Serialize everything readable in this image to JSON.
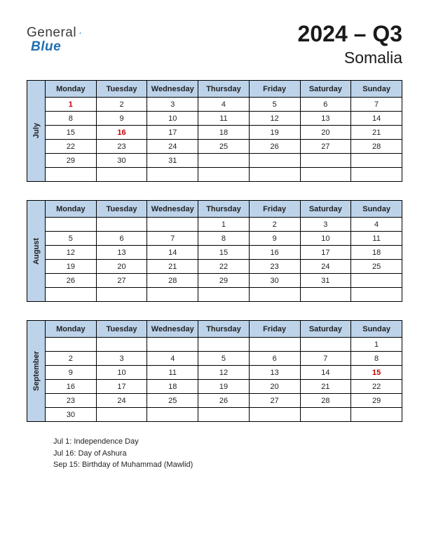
{
  "logo": {
    "general": "General",
    "blue": "Blue"
  },
  "header": {
    "title": "2024 – Q3",
    "country": "Somalia"
  },
  "weekdays": [
    "Monday",
    "Tuesday",
    "Wednesday",
    "Thursday",
    "Friday",
    "Saturday",
    "Sunday"
  ],
  "months": [
    {
      "name": "July",
      "rows": [
        [
          {
            "d": "1",
            "h": true
          },
          {
            "d": "2"
          },
          {
            "d": "3"
          },
          {
            "d": "4"
          },
          {
            "d": "5"
          },
          {
            "d": "6"
          },
          {
            "d": "7"
          }
        ],
        [
          {
            "d": "8"
          },
          {
            "d": "9"
          },
          {
            "d": "10"
          },
          {
            "d": "11"
          },
          {
            "d": "12"
          },
          {
            "d": "13"
          },
          {
            "d": "14"
          }
        ],
        [
          {
            "d": "15"
          },
          {
            "d": "16",
            "h": true
          },
          {
            "d": "17"
          },
          {
            "d": "18"
          },
          {
            "d": "19"
          },
          {
            "d": "20"
          },
          {
            "d": "21"
          }
        ],
        [
          {
            "d": "22"
          },
          {
            "d": "23"
          },
          {
            "d": "24"
          },
          {
            "d": "25"
          },
          {
            "d": "26"
          },
          {
            "d": "27"
          },
          {
            "d": "28"
          }
        ],
        [
          {
            "d": "29"
          },
          {
            "d": "30"
          },
          {
            "d": "31"
          },
          {
            "d": ""
          },
          {
            "d": ""
          },
          {
            "d": ""
          },
          {
            "d": ""
          }
        ],
        [
          {
            "d": ""
          },
          {
            "d": ""
          },
          {
            "d": ""
          },
          {
            "d": ""
          },
          {
            "d": ""
          },
          {
            "d": ""
          },
          {
            "d": ""
          }
        ]
      ]
    },
    {
      "name": "August",
      "rows": [
        [
          {
            "d": ""
          },
          {
            "d": ""
          },
          {
            "d": ""
          },
          {
            "d": "1"
          },
          {
            "d": "2"
          },
          {
            "d": "3"
          },
          {
            "d": "4"
          }
        ],
        [
          {
            "d": "5"
          },
          {
            "d": "6"
          },
          {
            "d": "7"
          },
          {
            "d": "8"
          },
          {
            "d": "9"
          },
          {
            "d": "10"
          },
          {
            "d": "11"
          }
        ],
        [
          {
            "d": "12"
          },
          {
            "d": "13"
          },
          {
            "d": "14"
          },
          {
            "d": "15"
          },
          {
            "d": "16"
          },
          {
            "d": "17"
          },
          {
            "d": "18"
          }
        ],
        [
          {
            "d": "19"
          },
          {
            "d": "20"
          },
          {
            "d": "21"
          },
          {
            "d": "22"
          },
          {
            "d": "23"
          },
          {
            "d": "24"
          },
          {
            "d": "25"
          }
        ],
        [
          {
            "d": "26"
          },
          {
            "d": "27"
          },
          {
            "d": "28"
          },
          {
            "d": "29"
          },
          {
            "d": "30"
          },
          {
            "d": "31"
          },
          {
            "d": ""
          }
        ],
        [
          {
            "d": ""
          },
          {
            "d": ""
          },
          {
            "d": ""
          },
          {
            "d": ""
          },
          {
            "d": ""
          },
          {
            "d": ""
          },
          {
            "d": ""
          }
        ]
      ]
    },
    {
      "name": "September",
      "rows": [
        [
          {
            "d": ""
          },
          {
            "d": ""
          },
          {
            "d": ""
          },
          {
            "d": ""
          },
          {
            "d": ""
          },
          {
            "d": ""
          },
          {
            "d": "1"
          }
        ],
        [
          {
            "d": "2"
          },
          {
            "d": "3"
          },
          {
            "d": "4"
          },
          {
            "d": "5"
          },
          {
            "d": "6"
          },
          {
            "d": "7"
          },
          {
            "d": "8"
          }
        ],
        [
          {
            "d": "9"
          },
          {
            "d": "10"
          },
          {
            "d": "11"
          },
          {
            "d": "12"
          },
          {
            "d": "13"
          },
          {
            "d": "14"
          },
          {
            "d": "15",
            "h": true
          }
        ],
        [
          {
            "d": "16"
          },
          {
            "d": "17"
          },
          {
            "d": "18"
          },
          {
            "d": "19"
          },
          {
            "d": "20"
          },
          {
            "d": "21"
          },
          {
            "d": "22"
          }
        ],
        [
          {
            "d": "23"
          },
          {
            "d": "24"
          },
          {
            "d": "25"
          },
          {
            "d": "26"
          },
          {
            "d": "27"
          },
          {
            "d": "28"
          },
          {
            "d": "29"
          }
        ],
        [
          {
            "d": "30"
          },
          {
            "d": ""
          },
          {
            "d": ""
          },
          {
            "d": ""
          },
          {
            "d": ""
          },
          {
            "d": ""
          },
          {
            "d": ""
          }
        ]
      ]
    }
  ],
  "notes": [
    "Jul 1: Independence Day",
    "Jul 16: Day of Ashura",
    "Sep 15: Birthday of Muhammad (Mawlid)"
  ],
  "colors": {
    "header_bg": "#bcd3ea",
    "holiday": "#c00000",
    "border": "#000000",
    "text": "#222222"
  }
}
